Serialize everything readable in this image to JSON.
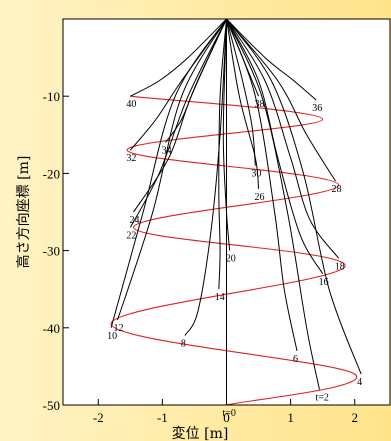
{
  "chart_data": {
    "type": "line",
    "xlabel": "変位 [m]",
    "ylabel": "高さ方向座標 [m]",
    "xlim": [
      -2.55,
      2.55
    ],
    "ylim": [
      -50,
      0
    ],
    "xticks": [
      "-2",
      "-1",
      "0",
      "1",
      "2"
    ],
    "yticks": [
      "-10",
      "-20",
      "-30",
      "-40",
      "-50"
    ],
    "xtick_values": [
      -2,
      -1,
      0,
      1,
      2
    ],
    "ytick_values": [
      -10,
      -20,
      -30,
      -40,
      -50
    ],
    "grid": false,
    "legend": "none",
    "colors": {
      "series": "#000000",
      "tip_path": "#e02020",
      "frame": "#000000"
    },
    "series": [
      {
        "name": "t=0",
        "points": [
          [
            0,
            0
          ],
          [
            0,
            -50
          ]
        ]
      },
      {
        "name": "t=2",
        "points": [
          [
            0,
            0
          ],
          [
            0.55,
            -10
          ],
          [
            0.95,
            -25
          ],
          [
            1.25,
            -40
          ],
          [
            1.45,
            -48
          ]
        ]
      },
      {
        "name": "4",
        "points": [
          [
            0,
            0
          ],
          [
            0.7,
            -8
          ],
          [
            1.2,
            -20
          ],
          [
            1.6,
            -35
          ],
          [
            2.1,
            -46
          ]
        ]
      },
      {
        "name": "6",
        "points": [
          [
            0,
            0
          ],
          [
            0.45,
            -10
          ],
          [
            0.75,
            -25
          ],
          [
            0.9,
            -35
          ],
          [
            1.1,
            -43
          ]
        ]
      },
      {
        "name": "8",
        "points": [
          [
            0,
            0
          ],
          [
            -0.1,
            -15
          ],
          [
            -0.25,
            -28
          ],
          [
            -0.45,
            -38
          ],
          [
            -0.65,
            -41
          ]
        ]
      },
      {
        "name": "10",
        "points": [
          [
            0,
            0
          ],
          [
            -0.8,
            -10
          ],
          [
            -1.3,
            -25
          ],
          [
            -1.8,
            -40
          ]
        ]
      },
      {
        "name": "12",
        "points": [
          [
            0,
            0
          ],
          [
            -0.7,
            -10
          ],
          [
            -1.15,
            -25
          ],
          [
            -1.7,
            -39
          ]
        ]
      },
      {
        "name": "14",
        "points": [
          [
            0,
            0
          ],
          [
            -0.1,
            -10
          ],
          [
            -0.12,
            -22
          ],
          [
            -0.1,
            -30
          ],
          [
            -0.12,
            -35
          ]
        ]
      },
      {
        "name": "16",
        "points": [
          [
            0,
            0
          ],
          [
            0.5,
            -8
          ],
          [
            0.8,
            -18
          ],
          [
            1.15,
            -28
          ],
          [
            1.5,
            -33
          ]
        ]
      },
      {
        "name": "18",
        "points": [
          [
            0,
            0
          ],
          [
            0.6,
            -8
          ],
          [
            1.0,
            -18
          ],
          [
            1.3,
            -26
          ],
          [
            1.75,
            -31
          ]
        ]
      },
      {
        "name": "20",
        "points": [
          [
            0,
            0
          ],
          [
            -0.05,
            -15
          ],
          [
            0,
            -25
          ],
          [
            0.05,
            -30
          ]
        ]
      },
      {
        "name": "22",
        "points": [
          [
            0,
            0
          ],
          [
            -0.6,
            -10
          ],
          [
            -1.05,
            -20
          ],
          [
            -1.5,
            -27
          ]
        ]
      },
      {
        "name": "24",
        "points": [
          [
            0,
            0
          ],
          [
            -0.55,
            -10
          ],
          [
            -0.9,
            -18
          ],
          [
            -1.45,
            -25
          ]
        ]
      },
      {
        "name": "26",
        "points": [
          [
            0,
            0
          ],
          [
            0.2,
            -10
          ],
          [
            0.45,
            -18
          ],
          [
            0.5,
            -22
          ]
        ]
      },
      {
        "name": "28",
        "points": [
          [
            0,
            0
          ],
          [
            0.8,
            -8
          ],
          [
            1.25,
            -15
          ],
          [
            1.7,
            -21
          ]
        ]
      },
      {
        "name": "30",
        "points": [
          [
            0,
            0
          ],
          [
            0.25,
            -8
          ],
          [
            0.4,
            -14
          ],
          [
            0.45,
            -19
          ]
        ]
      },
      {
        "name": "32",
        "points": [
          [
            0,
            0
          ],
          [
            -0.7,
            -8
          ],
          [
            -1.1,
            -13
          ],
          [
            -1.5,
            -17
          ]
        ]
      },
      {
        "name": "34",
        "points": [
          [
            0,
            0
          ],
          [
            -0.45,
            -8
          ],
          [
            -0.7,
            -13
          ],
          [
            -0.95,
            -16
          ]
        ]
      },
      {
        "name": "36",
        "points": [
          [
            0,
            0
          ],
          [
            0.6,
            -5
          ],
          [
            1.05,
            -8
          ],
          [
            1.4,
            -10.5
          ]
        ]
      },
      {
        "name": "38",
        "points": [
          [
            0,
            0
          ],
          [
            0.35,
            -7
          ],
          [
            0.5,
            -10
          ]
        ]
      },
      {
        "name": "40",
        "points": [
          [
            0,
            0
          ],
          [
            -0.6,
            -5
          ],
          [
            -1.05,
            -8
          ],
          [
            -1.5,
            -10
          ]
        ]
      }
    ],
    "tip_path": [
      [
        0,
        -50
      ],
      [
        2.0,
        -46
      ],
      [
        -1.8,
        -39.5
      ],
      [
        1.85,
        -32
      ],
      [
        -1.45,
        -27
      ],
      [
        1.75,
        -21.5
      ],
      [
        -1.55,
        -17
      ],
      [
        1.5,
        -13
      ],
      [
        -1.5,
        -10
      ]
    ]
  }
}
